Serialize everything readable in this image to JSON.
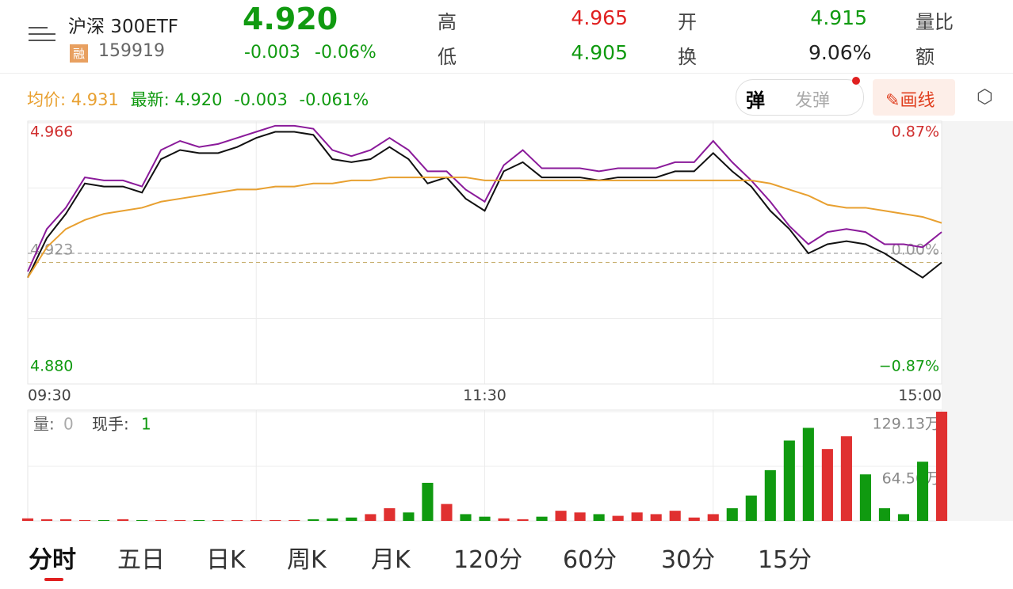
{
  "header": {
    "name": "沪深 300ETF",
    "badge": "融",
    "code": "159919",
    "price": 4.92,
    "price_label": "4.920",
    "change": "-0.003",
    "change_pct": "-0.06%"
  },
  "stats": [
    {
      "label": "高",
      "value": "4.965",
      "color": "#e02020"
    },
    {
      "label": "低",
      "value": "4.905",
      "color": "#109a10"
    },
    {
      "label": "开",
      "value": "4.915",
      "color": "#109a10"
    },
    {
      "label": "换",
      "value": "9.06%",
      "color": "#222222"
    },
    {
      "label": "量比"
    },
    {
      "label": "额"
    }
  ],
  "info": {
    "avg_label": "均价:",
    "avg": "4.931",
    "last_label": "最新:",
    "last": "4.920",
    "change": "-0.003",
    "change_pct": "-0.061%"
  },
  "buttons": {
    "danmaku": "弹",
    "send": "发弹",
    "draw": "画线"
  },
  "chart_data": {
    "type": "line",
    "ylim": [
      4.88,
      4.966
    ],
    "yticks": [
      {
        "value": 4.88,
        "label": "4.880"
      },
      4.923,
      4.966
    ],
    "y2lim": [
      -0.87,
      0.87
    ],
    "y2ticks": [
      {
        "value": -0.87,
        "label": "−0.87%"
      },
      {
        "value": 0,
        "label": "0.00%"
      },
      {
        "value": 0.87,
        "label": "0.87%"
      }
    ],
    "xlim": [
      0,
      48
    ],
    "xticks": [
      {
        "value": 0,
        "label": "09:30"
      },
      {
        "value": 24,
        "label": "11:30"
      },
      {
        "value": 48,
        "label": "15:00"
      }
    ],
    "series": [
      {
        "color": "#8a1a9a",
        "values": [
          4.917,
          4.931,
          4.938,
          4.948,
          4.947,
          4.947,
          4.945,
          4.957,
          4.96,
          4.958,
          4.959,
          4.961,
          4.963,
          4.965,
          4.965,
          4.964,
          4.957,
          4.955,
          4.957,
          4.961,
          4.957,
          4.95,
          4.95,
          4.944,
          4.94,
          4.952,
          4.957,
          4.951,
          4.951,
          4.951,
          4.95,
          4.951,
          4.951,
          4.951,
          4.953,
          4.953,
          4.96,
          4.953,
          4.947,
          4.94,
          4.932,
          4.926,
          4.93,
          4.931,
          4.93,
          4.926,
          4.926,
          4.925,
          4.93
        ]
      },
      {
        "color": "#111111",
        "values": [
          4.915,
          4.928,
          4.936,
          4.946,
          4.945,
          4.945,
          4.943,
          4.954,
          4.957,
          4.956,
          4.956,
          4.958,
          4.961,
          4.963,
          4.963,
          4.962,
          4.954,
          4.953,
          4.954,
          4.958,
          4.954,
          4.946,
          4.948,
          4.941,
          4.937,
          4.95,
          4.953,
          4.948,
          4.948,
          4.948,
          4.947,
          4.948,
          4.948,
          4.948,
          4.95,
          4.95,
          4.956,
          4.95,
          4.945,
          4.937,
          4.931,
          4.923,
          4.926,
          4.927,
          4.926,
          4.923,
          4.919,
          4.915,
          4.92
        ]
      },
      {
        "color": "#e8a030",
        "values": [
          4.915,
          4.925,
          4.931,
          4.934,
          4.936,
          4.937,
          4.938,
          4.94,
          4.941,
          4.942,
          4.943,
          4.944,
          4.944,
          4.945,
          4.945,
          4.946,
          4.946,
          4.947,
          4.947,
          4.948,
          4.948,
          4.948,
          4.948,
          4.948,
          4.947,
          4.947,
          4.947,
          4.947,
          4.947,
          4.947,
          4.947,
          4.947,
          4.947,
          4.947,
          4.947,
          4.947,
          4.947,
          4.947,
          4.947,
          4.946,
          4.944,
          4.942,
          4.939,
          4.938,
          4.938,
          4.937,
          4.936,
          4.935,
          4.933
        ]
      }
    ]
  },
  "volume": {
    "label": "量:",
    "value": "0",
    "hand_label": "现手:",
    "hand": "1",
    "ylim": [
      0,
      129.13
    ],
    "yticks": [
      {
        "value": 64.56,
        "label": "64.56万"
      },
      {
        "value": 129.13,
        "label": "129.13万"
      }
    ],
    "values": [
      3,
      2,
      2,
      1,
      1,
      2,
      1,
      1,
      1,
      1,
      1,
      1,
      1,
      1,
      1,
      2,
      3,
      4,
      8,
      15,
      10,
      45,
      20,
      8,
      5,
      3,
      2,
      5,
      12,
      10,
      8,
      6,
      10,
      8,
      12,
      4,
      8,
      15,
      30,
      60,
      95,
      110,
      85,
      100,
      55,
      15,
      8,
      70,
      129.13
    ]
  },
  "tabs": [
    "分时",
    "五日",
    "日K",
    "周K",
    "月K",
    "120分",
    "60分",
    "30分",
    "15分"
  ]
}
